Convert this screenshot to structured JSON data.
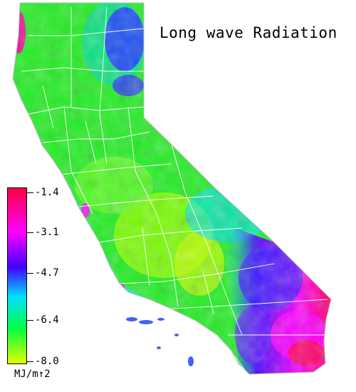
{
  "map": {
    "title": "Long wave Radiation",
    "region": "California"
  },
  "legend": {
    "unit": "MJ/m↑2",
    "ticks": [
      "-1.4",
      "-3.1",
      "-4.7",
      "-6.4",
      "-8.0"
    ],
    "colors": {
      "high": "#ff0040",
      "upper": "#ff00ff",
      "mid_high": "#4000ff",
      "mid": "#00e0ff",
      "mid_low": "#00ff40",
      "low": "#e0ff00"
    }
  }
}
